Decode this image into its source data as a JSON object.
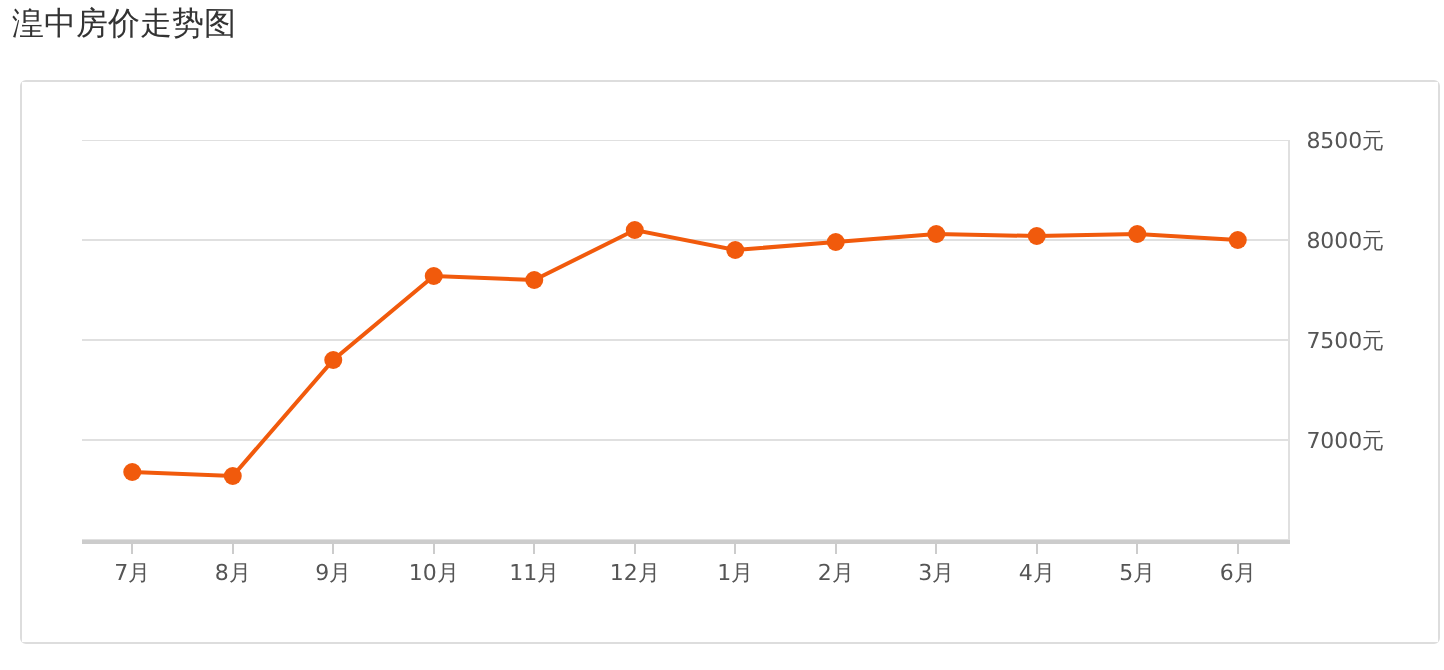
{
  "chart_data": {
    "type": "line",
    "title": "湟中房价走势图",
    "categories": [
      "7月",
      "8月",
      "9月",
      "10月",
      "11月",
      "12月",
      "1月",
      "2月",
      "3月",
      "4月",
      "5月",
      "6月"
    ],
    "series": [
      {
        "color": "#f15a0c",
        "values": [
          6840,
          6820,
          7400,
          7820,
          7800,
          8050,
          7950,
          7990,
          8030,
          8020,
          8030,
          8000
        ]
      }
    ],
    "ylim": [
      6500,
      8500
    ],
    "yticks": [
      {
        "value": 6500,
        "label": null
      },
      {
        "value": 7000,
        "label": "7000元"
      },
      {
        "value": 7500,
        "label": "7500元"
      },
      {
        "value": 8000,
        "label": "8000元"
      },
      {
        "value": 8500,
        "label": "8500元"
      }
    ],
    "grid": "y",
    "marker": "circle",
    "line_style": "solid"
  }
}
